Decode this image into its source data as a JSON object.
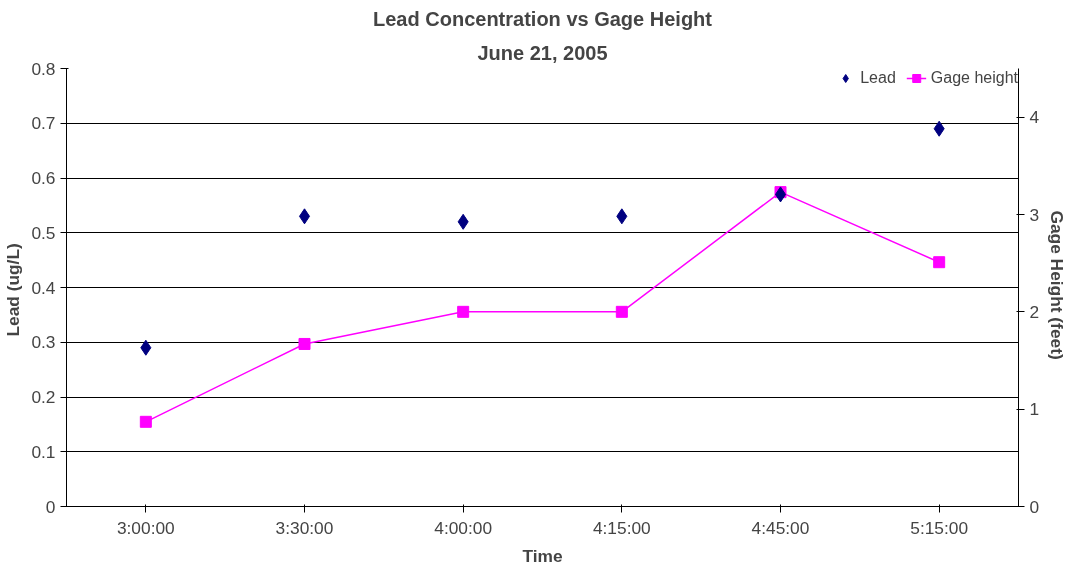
{
  "chart_data": {
    "type": "line",
    "title": "Lead Concentration vs Gage Height",
    "subtitle": "June 21, 2005",
    "xlabel": "Time",
    "ylabel": "Lead  (ug/L)",
    "y2label": "Gage Height  (feet)",
    "categories": [
      "3:00:00",
      "3:30:00",
      "4:00:00",
      "4:15:00",
      "4:45:00",
      "5:15:00"
    ],
    "series": [
      {
        "name": "Lead",
        "type": "scatter",
        "marker": "diamond",
        "color": "#000080",
        "values": [
          0.29,
          0.53,
          0.52,
          0.53,
          0.57,
          0.69
        ]
      },
      {
        "name": "Gage height",
        "marker": "square",
        "axis": "y2",
        "color": "#ff00ff",
        "values": [
          0.87,
          1.67,
          2.0,
          2.0,
          3.23,
          2.51
        ]
      }
    ],
    "ylim": [
      0,
      0.8
    ],
    "yticks": [
      0,
      0.1,
      0.2,
      0.3,
      0.4,
      0.5,
      0.6,
      0.7,
      0.8
    ],
    "y2lim": [
      0,
      4.5
    ],
    "y2ticks": [
      0,
      1,
      2,
      3,
      4
    ],
    "grid": "y",
    "legend": "top right"
  }
}
